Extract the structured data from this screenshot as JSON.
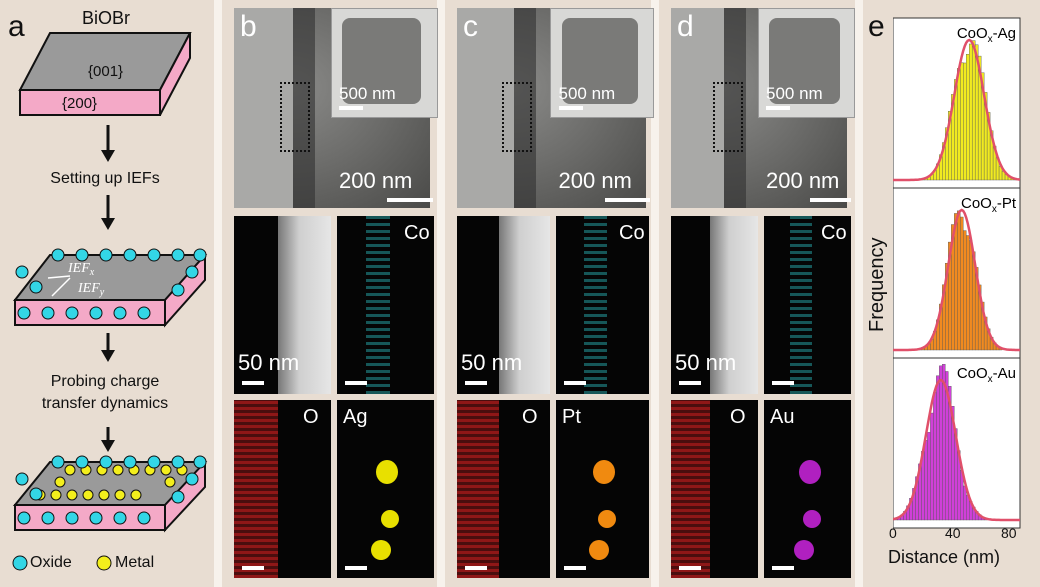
{
  "panel_a": {
    "label": "a",
    "material": "BiOBr",
    "facet_top": "{001}",
    "facet_side": "{200}",
    "step1": "Setting up IEFs",
    "ief_x": "IEF",
    "ief_x_sub": "x",
    "ief_y": "IEF",
    "ief_y_sub": "y",
    "step2_line1": "Probing charge",
    "step2_line2": "transfer dynamics",
    "legend_oxide": "Oxide",
    "legend_metal": "Metal",
    "colors": {
      "oxide": "#33d6e6",
      "metal": "#f3ee1c",
      "top": "#9a9a9a",
      "side": "#f4a9c7"
    }
  },
  "panel_b": {
    "label": "b",
    "inset_scale": "500 nm",
    "main_scale": "200 nm",
    "haadf_scale": "50 nm",
    "map1": "Co",
    "map2": "O",
    "map3": "Ag",
    "colors": {
      "co": "#2fd2d6",
      "o": "#d42020",
      "metal": "#e8e000"
    }
  },
  "panel_c": {
    "label": "c",
    "inset_scale": "500 nm",
    "main_scale": "200 nm",
    "haadf_scale": "50 nm",
    "map1": "Co",
    "map2": "O",
    "map3": "Pt",
    "colors": {
      "co": "#2fd2d6",
      "o": "#d42020",
      "metal": "#f08a10"
    }
  },
  "panel_d": {
    "label": "d",
    "inset_scale": "500 nm",
    "main_scale": "200 nm",
    "haadf_scale": "50 nm",
    "map1": "Co",
    "map2": "O",
    "map3": "Au",
    "colors": {
      "co": "#2fd2d6",
      "o": "#d42020",
      "metal": "#b020c0"
    }
  },
  "panel_e": {
    "label": "e",
    "ylabel": "Frequency",
    "xlabel": "Distance (nm)",
    "xticks": [
      "0",
      "40",
      "80"
    ]
  },
  "chart_data": {
    "type": "bar",
    "xlabel": "Distance (nm)",
    "ylabel": "Frequency",
    "xlim": [
      0,
      85
    ],
    "series": [
      {
        "name": "CoOx-Ag",
        "label_main": "CoO",
        "label_sub": "x",
        "label_tail": "-Ag",
        "mean": 51,
        "sd": 10,
        "color": "#f0ea20",
        "fit_color": "#e0506a"
      },
      {
        "name": "CoOx-Pt",
        "label_main": "CoO",
        "label_sub": "x",
        "label_tail": "-Pt",
        "mean": 46,
        "sd": 9,
        "color": "#f08a20",
        "fit_color": "#e0506a"
      },
      {
        "name": "CoOx-Au",
        "label_main": "CoO",
        "label_sub": "x",
        "label_tail": "-Au",
        "mean": 32,
        "sd": 10,
        "color": "#d040d8",
        "fit_color": "#e0506a"
      }
    ]
  }
}
